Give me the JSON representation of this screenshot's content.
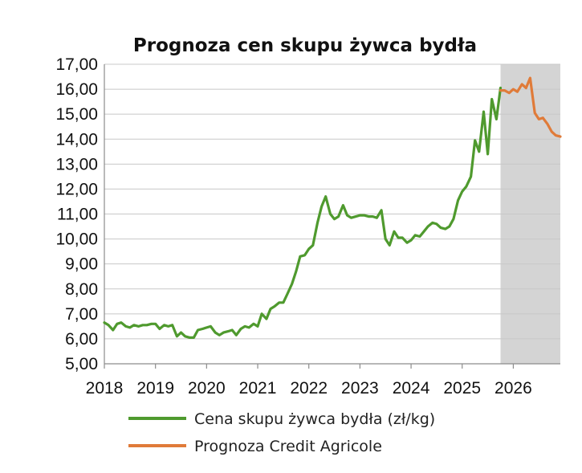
{
  "chart_data": {
    "type": "line",
    "title": "Prognoza cen skupu żywca bydła",
    "xlabel": "",
    "ylabel": "",
    "xlim": [
      2018.0,
      2026.92
    ],
    "ylim": [
      5,
      17
    ],
    "x_ticks": [
      "2018",
      "2019",
      "2020",
      "2021",
      "2022",
      "2023",
      "2024",
      "2025",
      "2026"
    ],
    "y_ticks": [
      "5,00",
      "6,00",
      "7,00",
      "8,00",
      "9,00",
      "10,00",
      "11,00",
      "12,00",
      "13,00",
      "14,00",
      "15,00",
      "16,00",
      "17,00"
    ],
    "grid": "horizontal",
    "legend_position": "bottom",
    "forecast_shade": {
      "from": 2025.75,
      "to": 2026.92,
      "color": "#d4d4d4"
    },
    "series": [
      {
        "name": "Cena skupu żywca bydła (zł/kg)",
        "color": "#4f9a2e",
        "x": [
          2018.0,
          2018.08,
          2018.17,
          2018.25,
          2018.33,
          2018.42,
          2018.5,
          2018.58,
          2018.67,
          2018.75,
          2018.83,
          2018.92,
          2019.0,
          2019.08,
          2019.17,
          2019.25,
          2019.33,
          2019.42,
          2019.5,
          2019.58,
          2019.67,
          2019.75,
          2019.83,
          2019.92,
          2020.0,
          2020.08,
          2020.17,
          2020.25,
          2020.33,
          2020.42,
          2020.5,
          2020.58,
          2020.67,
          2020.75,
          2020.83,
          2020.92,
          2021.0,
          2021.08,
          2021.17,
          2021.25,
          2021.33,
          2021.42,
          2021.5,
          2021.58,
          2021.67,
          2021.75,
          2021.83,
          2021.92,
          2022.0,
          2022.08,
          2022.17,
          2022.25,
          2022.33,
          2022.42,
          2022.5,
          2022.58,
          2022.67,
          2022.75,
          2022.83,
          2022.92,
          2023.0,
          2023.08,
          2023.17,
          2023.25,
          2023.33,
          2023.42,
          2023.5,
          2023.58,
          2023.67,
          2023.75,
          2023.83,
          2023.92,
          2024.0,
          2024.08,
          2024.17,
          2024.25,
          2024.33,
          2024.42,
          2024.5,
          2024.58,
          2024.67,
          2024.75,
          2024.83,
          2024.92,
          2025.0,
          2025.08,
          2025.17,
          2025.25,
          2025.33,
          2025.42,
          2025.5,
          2025.58,
          2025.67,
          2025.75
        ],
        "values": [
          6.65,
          6.55,
          6.35,
          6.6,
          6.65,
          6.5,
          6.45,
          6.55,
          6.5,
          6.55,
          6.55,
          6.6,
          6.6,
          6.4,
          6.55,
          6.5,
          6.55,
          6.1,
          6.25,
          6.1,
          6.05,
          6.05,
          6.35,
          6.4,
          6.45,
          6.5,
          6.25,
          6.15,
          6.25,
          6.3,
          6.35,
          6.15,
          6.4,
          6.5,
          6.45,
          6.6,
          6.5,
          7.0,
          6.8,
          7.2,
          7.3,
          7.45,
          7.45,
          7.8,
          8.2,
          8.7,
          9.3,
          9.35,
          9.6,
          9.75,
          10.65,
          11.3,
          11.7,
          11.0,
          10.8,
          10.9,
          11.35,
          10.95,
          10.85,
          10.9,
          10.95,
          10.95,
          10.9,
          10.9,
          10.85,
          11.15,
          10.0,
          9.75,
          10.3,
          10.05,
          10.05,
          9.85,
          9.95,
          10.15,
          10.1,
          10.3,
          10.5,
          10.65,
          10.6,
          10.45,
          10.4,
          10.5,
          10.8,
          11.55,
          11.9,
          12.1,
          12.5,
          13.95,
          13.5,
          15.1,
          13.4,
          15.6,
          14.8,
          16.05
        ]
      },
      {
        "name": "Prognoza Credit Agricole",
        "color": "#e07b39",
        "x": [
          2025.75,
          2025.83,
          2025.92,
          2026.0,
          2026.08,
          2026.17,
          2026.25,
          2026.33,
          2026.42,
          2026.5,
          2026.58,
          2026.67,
          2026.75,
          2026.83,
          2026.92
        ],
        "values": [
          15.95,
          15.95,
          15.85,
          16.0,
          15.9,
          16.2,
          16.05,
          16.45,
          15.05,
          14.8,
          14.85,
          14.6,
          14.3,
          14.15,
          14.1
        ]
      }
    ]
  }
}
